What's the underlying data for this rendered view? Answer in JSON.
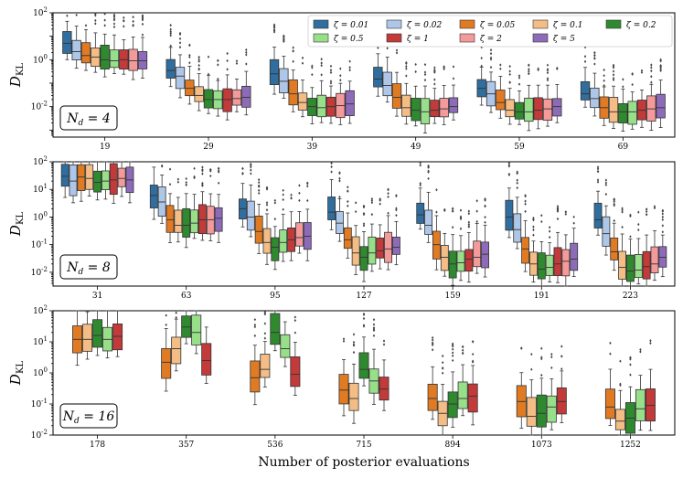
{
  "chart_data": {
    "type": "boxplot",
    "xlabel": "Number of posterior evaluations",
    "ylabel": "D_KL",
    "yscale": "log",
    "legend": {
      "placement": "top-right",
      "title_symbol": "ζ",
      "entries": [
        {
          "label": "ζ = 0.01",
          "color": "#2f6e9e"
        },
        {
          "label": "ζ = 0.02",
          "color": "#aec7e8"
        },
        {
          "label": "ζ = 0.05",
          "color": "#e07b24"
        },
        {
          "label": "ζ = 0.1",
          "color": "#f4bd86"
        },
        {
          "label": "ζ = 0.2",
          "color": "#2f8a2f"
        },
        {
          "label": "ζ = 0.5",
          "color": "#98df8a"
        },
        {
          "label": "ζ = 1",
          "color": "#c23a3a"
        },
        {
          "label": "ζ = 2",
          "color": "#f59a9a"
        },
        {
          "label": "ζ = 5",
          "color": "#8e6bb8"
        }
      ]
    },
    "panels": [
      {
        "label": "N_d = 4",
        "label_display": "Nd = 4",
        "ylim_exp": [
          -3.3,
          2
        ],
        "ytick_exps": [
          -2,
          0,
          2
        ],
        "ytick_labels": [
          "10-2",
          "100",
          "102"
        ],
        "categories": [
          "19",
          "29",
          "39",
          "49",
          "59",
          "69"
        ],
        "series": [
          {
            "zeta": "0.01",
            "medians": [
              5,
              0.35,
              0.25,
              0.15,
              0.06,
              0.035
            ]
          },
          {
            "zeta": "0.02",
            "medians": [
              2.2,
              0.2,
              0.12,
              0.08,
              0.035,
              0.022
            ]
          },
          {
            "zeta": "0.05",
            "medians": [
              1.5,
              0.06,
              0.035,
              0.025,
              0.015,
              0.009
            ]
          },
          {
            "zeta": "0.1",
            "medians": [
              1.3,
              0.03,
              0.015,
              0.009,
              0.007,
              0.006
            ]
          },
          {
            "zeta": "0.2",
            "medians": [
              1.0,
              0.02,
              0.01,
              0.007,
              0.006,
              0.006
            ]
          },
          {
            "zeta": "0.5",
            "medians": [
              0.9,
              0.02,
              0.009,
              0.006,
              0.006,
              0.006
            ]
          },
          {
            "zeta": "1",
            "medians": [
              1.0,
              0.02,
              0.01,
              0.007,
              0.007,
              0.007
            ]
          },
          {
            "zeta": "2",
            "medians": [
              0.9,
              0.022,
              0.011,
              0.008,
              0.008,
              0.008
            ]
          },
          {
            "zeta": "5",
            "medians": [
              0.9,
              0.025,
              0.013,
              0.01,
              0.01,
              0.009
            ]
          }
        ]
      },
      {
        "label": "N_d = 8",
        "label_display": "Nd = 8",
        "ylim_exp": [
          -2.5,
          2
        ],
        "ytick_exps": [
          -2,
          -1,
          0,
          1,
          2
        ],
        "ytick_labels": [
          "10-2",
          "10-1",
          "100",
          "101",
          "102"
        ],
        "categories": [
          "31",
          "63",
          "95",
          "127",
          "159",
          "191",
          "223"
        ],
        "series": [
          {
            "zeta": "0.01",
            "medians": [
              30,
              6,
              2,
              1.5,
              1.2,
              1.0,
              0.8
            ]
          },
          {
            "zeta": "0.02",
            "medians": [
              20,
              3.5,
              1.0,
              0.6,
              0.5,
              0.35,
              0.25
            ]
          },
          {
            "zeta": "0.05",
            "medians": [
              28,
              0.8,
              0.3,
              0.15,
              0.1,
              0.07,
              0.055
            ]
          },
          {
            "zeta": "0.1",
            "medians": [
              25,
              0.5,
              0.12,
              0.05,
              0.035,
              0.02,
              0.015
            ]
          },
          {
            "zeta": "0.2",
            "medians": [
              18,
              0.5,
              0.08,
              0.035,
              0.02,
              0.013,
              0.011
            ]
          },
          {
            "zeta": "0.5",
            "medians": [
              20,
              0.6,
              0.12,
              0.05,
              0.022,
              0.015,
              0.012
            ]
          },
          {
            "zeta": "1",
            "medians": [
              22,
              0.8,
              0.15,
              0.06,
              0.03,
              0.02,
              0.016
            ]
          },
          {
            "zeta": "2",
            "medians": [
              25,
              0.8,
              0.18,
              0.07,
              0.035,
              0.025,
              0.02
            ]
          },
          {
            "zeta": "5",
            "medians": [
              22,
              0.9,
              0.2,
              0.08,
              0.045,
              0.03,
              0.035
            ]
          }
        ]
      },
      {
        "label": "N_d = 16",
        "label_display": "Nd = 16",
        "ylim_exp": [
          -2,
          2
        ],
        "ytick_exps": [
          -2,
          -1,
          0,
          1,
          2
        ],
        "ytick_labels": [
          "10-2",
          "10-1",
          "100",
          "101",
          "102"
        ],
        "categories": [
          "178",
          "357",
          "536",
          "715",
          "894",
          "1073",
          "1252"
        ],
        "series": [
          {
            "zeta": "0.05",
            "medians": [
              12,
              2.2,
              0.7,
              0.28,
              0.15,
              0.12,
              0.08
            ]
          },
          {
            "zeta": "0.1",
            "medians": [
              12,
              6,
              1.3,
              0.15,
              0.05,
              0.04,
              0.028
            ]
          },
          {
            "zeta": "0.2",
            "medians": [
              16,
              30,
              20,
              1.3,
              0.1,
              0.05,
              0.035
            ]
          },
          {
            "zeta": "0.5",
            "medians": [
              12,
              20,
              6,
              0.55,
              0.15,
              0.08,
              0.07
            ]
          },
          {
            "zeta": "1",
            "medians": [
              15,
              2.5,
              0.9,
              0.3,
              0.18,
              0.12,
              0.09
            ]
          }
        ]
      }
    ]
  }
}
